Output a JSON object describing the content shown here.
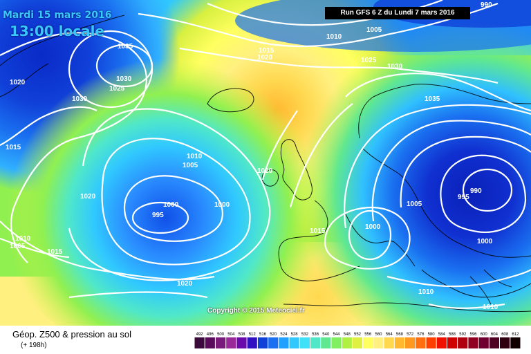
{
  "header": {
    "date": "Mardi 15 mars 2016",
    "local_time": "13:00 locale",
    "run": "Run GFS 6 Z du Lundi 7 mars 2016"
  },
  "copyright": "Copyright © 2015 Meteociel.fr",
  "footer": {
    "title": "Géop. Z500 & pression au sol",
    "subtitle": "(+ 198h)"
  },
  "legend": {
    "values": [
      "492",
      "496",
      "500",
      "504",
      "508",
      "512",
      "516",
      "520",
      "524",
      "528",
      "532",
      "536",
      "540",
      "544",
      "548",
      "552",
      "556",
      "560",
      "564",
      "568",
      "572",
      "576",
      "580",
      "584",
      "588",
      "592",
      "596",
      "600",
      "604",
      "608",
      "612"
    ],
    "colors": [
      "#3a0a3a",
      "#5a0a5a",
      "#7a1a7a",
      "#9a2a9a",
      "#6a0aaa",
      "#3010c0",
      "#1040d8",
      "#1a70f0",
      "#20a0ff",
      "#30c8ff",
      "#40e0f8",
      "#50e8c8",
      "#60e890",
      "#80f060",
      "#b0f040",
      "#e0f040",
      "#ffff60",
      "#fff080",
      "#ffd850",
      "#ffb830",
      "#ff9820",
      "#ff7010",
      "#ff4000",
      "#f01000",
      "#d00000",
      "#b00010",
      "#900020",
      "#700030",
      "#500020",
      "#300010",
      "#100000"
    ]
  },
  "isobars": [
    {
      "label": "990",
      "x": 1,
      "y": 1
    },
    {
      "label": "1035",
      "x": 1,
      "y": 1
    },
    {
      "label": "1030",
      "x": 1,
      "y": 1
    },
    {
      "label": "1025",
      "x": 1,
      "y": 1
    },
    {
      "label": "1020",
      "x": 1,
      "y": 1
    },
    {
      "label": "1015",
      "x": 1,
      "y": 1
    },
    {
      "label": "1010",
      "x": 1,
      "y": 1
    },
    {
      "label": "1005",
      "x": 1,
      "y": 1
    },
    {
      "label": "1000",
      "x": 1,
      "y": 1
    },
    {
      "label": "995",
      "x": 1,
      "y": 1
    }
  ]
}
